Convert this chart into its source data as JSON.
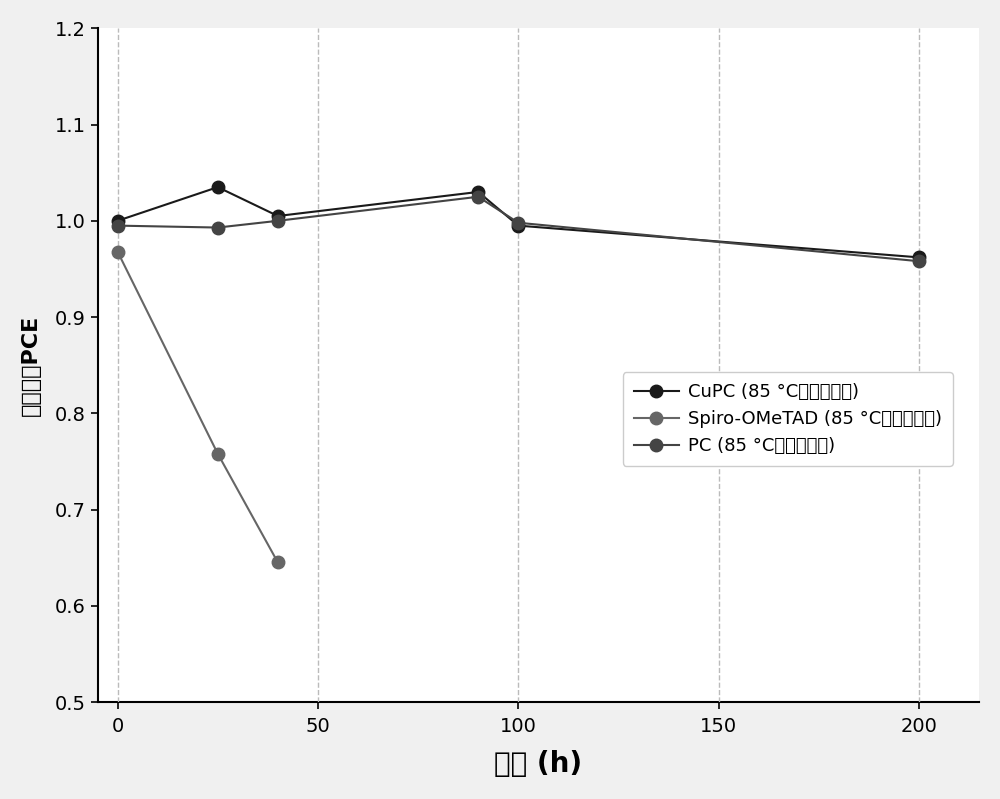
{
  "series": [
    {
      "label": "CuPC (85 °C，在空气中)",
      "x": [
        0,
        25,
        40,
        90,
        100,
        200
      ],
      "y": [
        1.0,
        1.035,
        1.005,
        1.03,
        0.995,
        0.962
      ],
      "color": "#1a1a1a",
      "marker": "o",
      "linestyle": "-",
      "markersize": 9
    },
    {
      "label": "Spiro-OMeTAD (85 °C，在空气中)",
      "x": [
        0,
        25,
        40
      ],
      "y": [
        0.968,
        0.758,
        0.645
      ],
      "color": "#666666",
      "marker": "o",
      "linestyle": "-",
      "markersize": 9
    },
    {
      "label": "PC (85 °C，在空气中)",
      "x": [
        0,
        25,
        40,
        90,
        100,
        200
      ],
      "y": [
        0.995,
        0.993,
        1.0,
        1.025,
        0.998,
        0.958
      ],
      "color": "#444444",
      "marker": "o",
      "linestyle": "-",
      "markersize": 9
    }
  ],
  "xlabel": "时间 (h)",
  "ylabel": "标准化的PCE",
  "xlim": [
    -5,
    215
  ],
  "ylim": [
    0.5,
    1.2
  ],
  "yticks": [
    0.5,
    0.6,
    0.7,
    0.8,
    0.9,
    1.0,
    1.1,
    1.2
  ],
  "xticks": [
    0,
    50,
    100,
    150,
    200
  ],
  "grid_color": "#bbbbbb",
  "background_color": "#f0f0f0",
  "plot_bg_color": "#ffffff",
  "xlabel_fontsize": 20,
  "ylabel_fontsize": 16,
  "tick_fontsize": 14,
  "legend_fontsize": 13
}
